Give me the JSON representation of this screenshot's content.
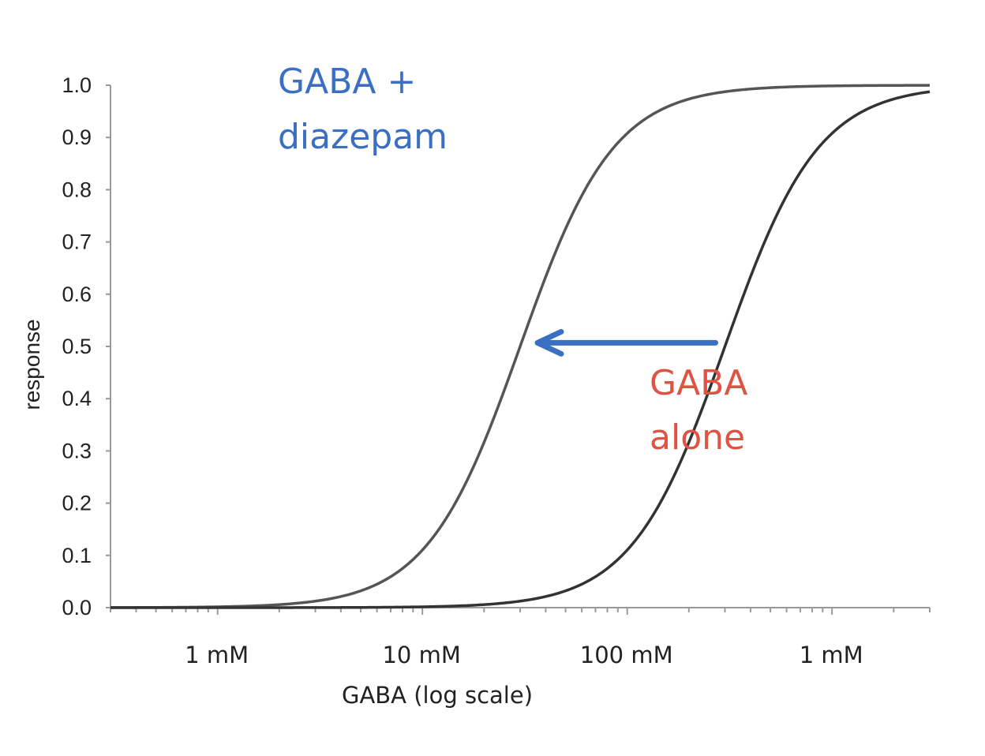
{
  "chart_data": {
    "type": "line",
    "title": "",
    "xlabel": "GABA (log scale)",
    "ylabel": "response",
    "x_scale": "log",
    "xlim": [
      0.3,
      3000
    ],
    "ylim": [
      0,
      1.0
    ],
    "y_ticks": [
      "0.0",
      "0.1",
      "0.2",
      "0.3",
      "0.4",
      "0.5",
      "0.6",
      "0.7",
      "0.8",
      "0.9",
      "1.0"
    ],
    "x_tick_labels": [
      {
        "value": 1,
        "label": "1 mM"
      },
      {
        "value": 10,
        "label": "10 mM"
      },
      {
        "value": 100,
        "label": "100 mM"
      },
      {
        "value": 1000,
        "label": "1 mM"
      }
    ],
    "grid": false,
    "series": [
      {
        "ec50": 30,
        "hill": 1.9,
        "color": "#555555",
        "x": [
          0.3,
          1,
          3,
          10,
          20,
          30,
          50,
          100,
          200,
          500,
          1000,
          3000
        ],
        "y": [
          0.0002,
          0.0016,
          0.012,
          0.1,
          0.31,
          0.5,
          0.72,
          0.9,
          0.97,
          0.995,
          0.999,
          1.0
        ]
      },
      {
        "ec50": 300,
        "hill": 1.9,
        "color": "#333333",
        "x": [
          0.3,
          1,
          10,
          30,
          100,
          200,
          300,
          500,
          1000,
          2000,
          3000
        ],
        "y": [
          0.0,
          2e-05,
          0.0016,
          0.012,
          0.1,
          0.31,
          0.5,
          0.72,
          0.9,
          0.97,
          0.988
        ]
      }
    ],
    "annotations": [
      {
        "lines": [
          "GABA +",
          "diazepam"
        ],
        "color": "#3a6fc4"
      },
      {
        "lines": [
          "GABA",
          "alone"
        ],
        "color": "#de5342"
      }
    ],
    "arrow": {
      "from_x": 300,
      "to_x": 30,
      "y": 0.51,
      "color": "#3a6fc4"
    }
  }
}
